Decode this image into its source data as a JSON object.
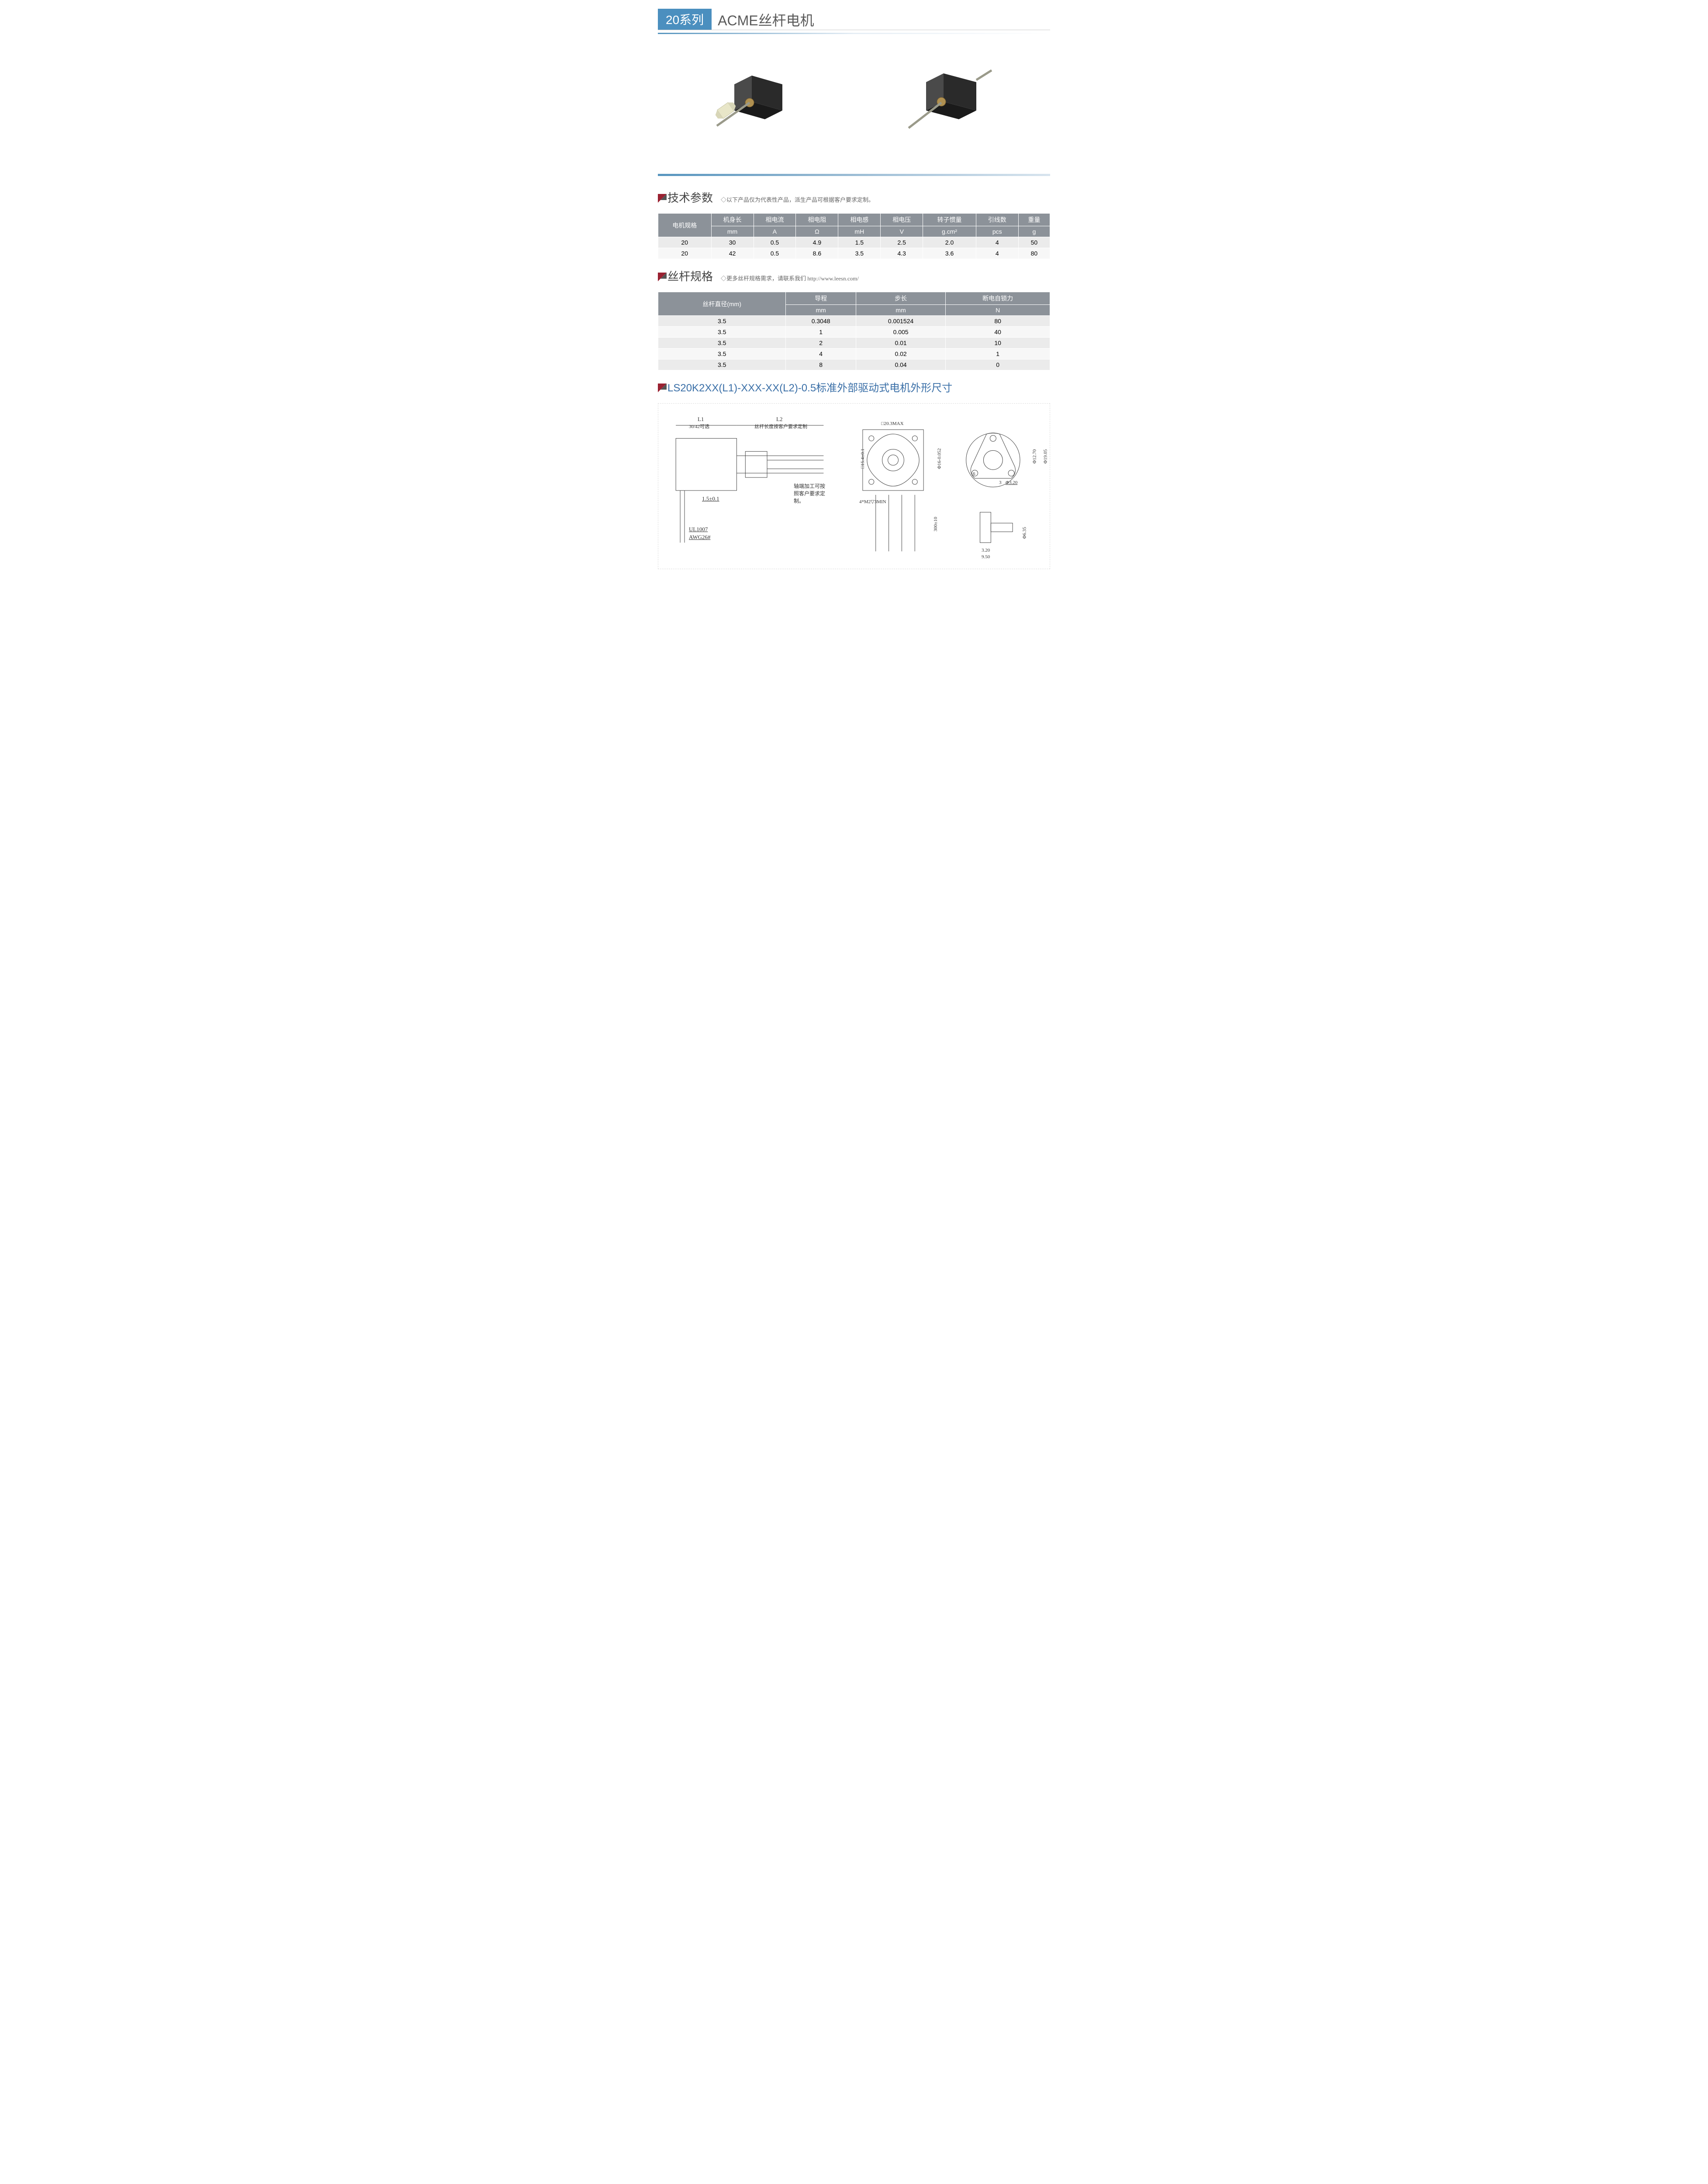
{
  "header": {
    "series_badge": "20系列",
    "title": "ACME丝杆电机"
  },
  "section_tech": {
    "title": "技术参数",
    "note": "◇以下产品仅为代表性产品，派生产品可根据客户要求定制。"
  },
  "tech_table": {
    "header_row1": [
      "电机规格",
      "机身长",
      "相电流",
      "相电阻",
      "相电感",
      "相电压",
      "转子惯量",
      "引线数",
      "重量"
    ],
    "header_row2": [
      "mm",
      "A",
      "Ω",
      "mH",
      "V",
      "g.cm²",
      "pcs",
      "g"
    ],
    "rows": [
      [
        "20",
        "30",
        "0.5",
        "4.9",
        "1.5",
        "2.5",
        "2.0",
        "4",
        "50"
      ],
      [
        "20",
        "42",
        "0.5",
        "8.6",
        "3.5",
        "4.3",
        "3.6",
        "4",
        "80"
      ]
    ]
  },
  "section_screw": {
    "title": "丝杆规格",
    "note": "◇更多丝杆规格需求，请联系我们 http://www.leesn.com/"
  },
  "screw_table": {
    "header_row1": [
      "丝杆直径(mm)",
      "导程",
      "步长",
      "断电自锁力"
    ],
    "header_row2": [
      "mm",
      "mm",
      "N"
    ],
    "rows": [
      [
        "3.5",
        "0.3048",
        "0.001524",
        "80"
      ],
      [
        "3.5",
        "1",
        "0.005",
        "40"
      ],
      [
        "3.5",
        "2",
        "0.01",
        "10"
      ],
      [
        "3.5",
        "4",
        "0.02",
        "1"
      ],
      [
        "3.5",
        "8",
        "0.04",
        "0"
      ]
    ]
  },
  "section_dim": {
    "title": "LS20K2XX(L1)-XXX-XX(L2)-0.5标准外部驱动式电机外形尺寸"
  },
  "diagram": {
    "L1": "L1",
    "L1_note": "30/42可选",
    "L2": "L2",
    "L2_note": "丝杆长度按客户要求定制",
    "tol1": "1.5±0.1",
    "wire": "UL1007",
    "awg": "AWG26#",
    "shaft_note": "轴端加工可按照客户要求定制。",
    "sq": "□20.3MAX",
    "h": "□15.4±0.1",
    "bore": "Φ16-0.052",
    "screw": "4*M2▽3MIN",
    "cable": "300±10",
    "d1": "Φ12.70",
    "d2": "Φ19.05",
    "s1": "6",
    "s2": "3",
    "s3": "Φ3.20",
    "s4": "3.20",
    "s5": "9.50",
    "s6": "Φ6.35"
  },
  "colors": {
    "badge_bg": "#4b8fbf",
    "marker": "#9a2131",
    "table_header": "#8c9299",
    "row_odd": "#ebebeb",
    "row_even": "#f7f7f7",
    "title_blue": "#3a6fa7"
  }
}
